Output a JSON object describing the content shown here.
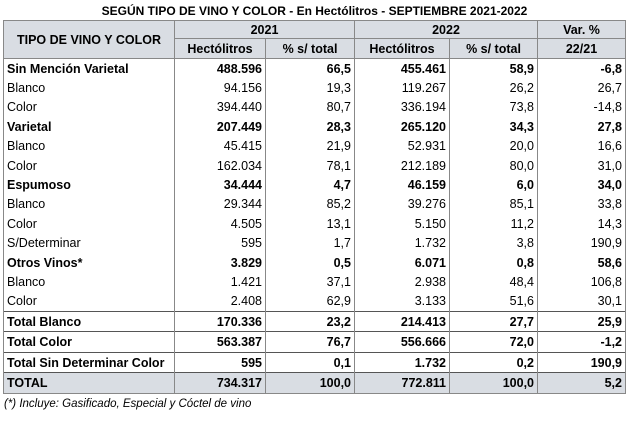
{
  "title": "SEGÚN TIPO DE VINO Y COLOR - En Hectólitros - SEPTIEMBRE 2021-2022",
  "header": {
    "col_type": "TIPO DE VINO Y COLOR",
    "year_2021": "2021",
    "year_2022": "2022",
    "var_top": "Var. %",
    "var_bottom": "22/21",
    "hl_2021": "Hectólitros",
    "pct_2021": "% s/ total",
    "hl_2022": "Hectólitros",
    "pct_2022": "% s/ total"
  },
  "rows": [
    {
      "label": "Sin Mención Varietal",
      "h21": "488.596",
      "p21": "66,5",
      "h22": "455.461",
      "p22": "58,9",
      "var": "-6,8",
      "bold": true
    },
    {
      "label": "Blanco",
      "h21": "94.156",
      "p21": "19,3",
      "h22": "119.267",
      "p22": "26,2",
      "var": "26,7",
      "bold": false
    },
    {
      "label": "Color",
      "h21": "394.440",
      "p21": "80,7",
      "h22": "336.194",
      "p22": "73,8",
      "var": "-14,8",
      "bold": false
    },
    {
      "label": "Varietal",
      "h21": "207.449",
      "p21": "28,3",
      "h22": "265.120",
      "p22": "34,3",
      "var": "27,8",
      "bold": true
    },
    {
      "label": "Blanco",
      "h21": "45.415",
      "p21": "21,9",
      "h22": "52.931",
      "p22": "20,0",
      "var": "16,6",
      "bold": false
    },
    {
      "label": "Color",
      "h21": "162.034",
      "p21": "78,1",
      "h22": "212.189",
      "p22": "80,0",
      "var": "31,0",
      "bold": false
    },
    {
      "label": "Espumoso",
      "h21": "34.444",
      "p21": "4,7",
      "h22": "46.159",
      "p22": "6,0",
      "var": "34,0",
      "bold": true
    },
    {
      "label": "Blanco",
      "h21": "29.344",
      "p21": "85,2",
      "h22": "39.276",
      "p22": "85,1",
      "var": "33,8",
      "bold": false
    },
    {
      "label": "Color",
      "h21": "4.505",
      "p21": "13,1",
      "h22": "5.150",
      "p22": "11,2",
      "var": "14,3",
      "bold": false
    },
    {
      "label": "S/Determinar",
      "h21": "595",
      "p21": "1,7",
      "h22": "1.732",
      "p22": "3,8",
      "var": "190,9",
      "bold": false
    },
    {
      "label": "Otros Vinos*",
      "h21": "3.829",
      "p21": "0,5",
      "h22": "6.071",
      "p22": "0,8",
      "var": "58,6",
      "bold": true
    },
    {
      "label": "Blanco",
      "h21": "1.421",
      "p21": "37,1",
      "h22": "2.938",
      "p22": "48,4",
      "var": "106,8",
      "bold": false
    },
    {
      "label": "Color",
      "h21": "2.408",
      "p21": "62,9",
      "h22": "3.133",
      "p22": "51,6",
      "var": "30,1",
      "bold": false
    },
    {
      "label": "Total Blanco",
      "h21": "170.336",
      "p21": "23,2",
      "h22": "214.413",
      "p22": "27,7",
      "var": "25,9",
      "bold": true,
      "total": true
    },
    {
      "label": "Total Color",
      "h21": "563.387",
      "p21": "76,7",
      "h22": "556.666",
      "p22": "72,0",
      "var": "-1,2",
      "bold": true,
      "total": true
    },
    {
      "label": "Total Sin Determinar Color",
      "h21": "595",
      "p21": "0,1",
      "h22": "1.732",
      "p22": "0,2",
      "var": "190,9",
      "bold": true,
      "total": true
    },
    {
      "label": "TOTAL",
      "h21": "734.317",
      "p21": "100,0",
      "h22": "772.811",
      "p22": "100,0",
      "var": "5,2",
      "bold": true,
      "grand": true
    }
  ],
  "footnote": "(*) Incluye: Gasificado, Especial y Cóctel de vino",
  "colors": {
    "header_bg": "#d9dde3",
    "border": "#888888"
  }
}
